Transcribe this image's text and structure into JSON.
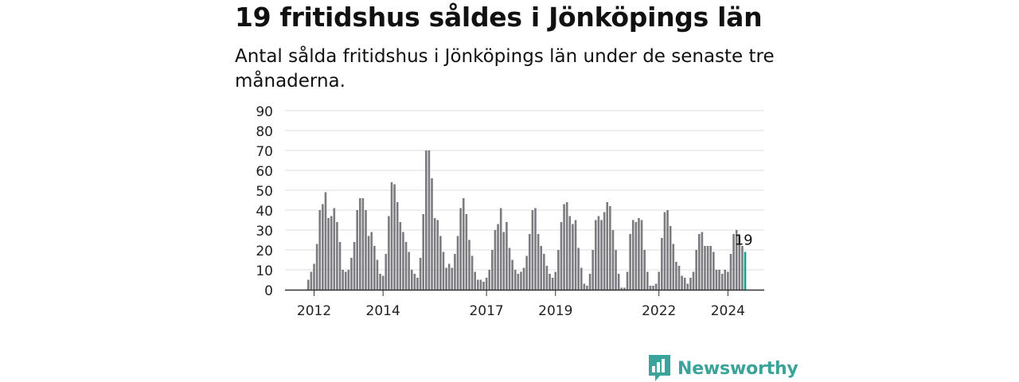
{
  "header": {
    "title": "19 fritidshus såldes i Jönköpings län",
    "subtitle": "Antal sålda fritidshus i Jönköpings län under de senaste tre månaderna."
  },
  "brand": {
    "name": "Newsworthy",
    "color": "#3aa39a"
  },
  "colors": {
    "bar": "#7b7b80",
    "highlight": "#1aa091",
    "grid": "#dcdcdc",
    "axis": "#333333"
  },
  "chart_data": {
    "type": "bar",
    "start_month": "2011-11",
    "ylim": [
      0,
      90
    ],
    "yticks": [
      0,
      10,
      20,
      30,
      40,
      50,
      60,
      70,
      80,
      90
    ],
    "xticks": [
      {
        "label": "2012",
        "month": "2012-01"
      },
      {
        "label": "2014",
        "month": "2014-01"
      },
      {
        "label": "2017",
        "month": "2017-01"
      },
      {
        "label": "2019",
        "month": "2019-01"
      },
      {
        "label": "2022",
        "month": "2022-01"
      },
      {
        "label": "2024",
        "month": "2024-01"
      }
    ],
    "values": [
      5,
      9,
      13,
      23,
      40,
      43,
      49,
      36,
      37,
      41,
      34,
      24,
      10,
      9,
      10,
      16,
      24,
      40,
      46,
      46,
      40,
      27,
      29,
      22,
      15,
      8,
      7,
      18,
      37,
      54,
      53,
      44,
      34,
      29,
      24,
      19,
      10,
      8,
      6,
      16,
      38,
      70,
      70,
      56,
      36,
      35,
      27,
      19,
      11,
      13,
      11,
      18,
      27,
      41,
      46,
      38,
      25,
      17,
      9,
      5,
      5,
      4,
      6,
      10,
      20,
      30,
      33,
      41,
      29,
      34,
      21,
      15,
      10,
      8,
      9,
      11,
      17,
      28,
      40,
      41,
      28,
      22,
      18,
      12,
      8,
      6,
      9,
      20,
      34,
      43,
      44,
      37,
      33,
      35,
      21,
      11,
      3,
      2,
      8,
      20,
      35,
      37,
      35,
      39,
      44,
      42,
      30,
      20,
      8,
      1,
      1,
      9,
      28,
      35,
      34,
      36,
      35,
      20,
      9,
      2,
      2,
      3,
      9,
      26,
      39,
      40,
      32,
      23,
      14,
      12,
      7,
      6,
      3,
      6,
      9,
      20,
      28,
      29,
      22,
      22,
      22,
      19,
      10,
      10,
      8,
      10,
      9,
      18,
      28,
      30,
      27,
      22,
      19
    ],
    "highlight_last": true,
    "last_label": "19"
  }
}
